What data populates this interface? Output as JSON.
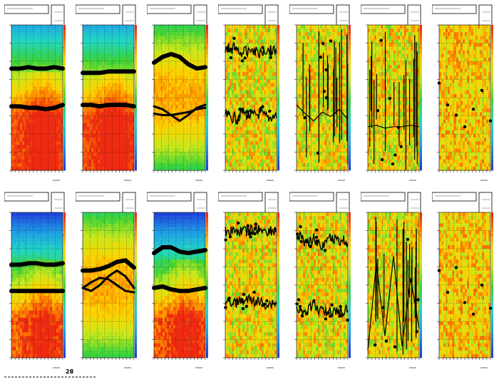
{
  "chart_data": [
    {
      "type": "heatmap",
      "panel": 1,
      "palette": "rainbow",
      "background": "orange-red",
      "tracks": [
        {
          "y": [
            0.3,
            0.3,
            0.29,
            0.3,
            0.3,
            0.29,
            0.3
          ],
          "style": "thick"
        },
        {
          "y": [
            0.56,
            0.56,
            0.57,
            0.57,
            0.58,
            0.57,
            0.55
          ],
          "style": "thick"
        }
      ]
    },
    {
      "type": "heatmap",
      "panel": 2,
      "palette": "rainbow",
      "background": "orange-red",
      "tracks": [
        {
          "y": [
            0.33,
            0.33,
            0.33,
            0.32,
            0.32,
            0.32,
            0.32
          ],
          "style": "thick"
        },
        {
          "y": [
            0.55,
            0.55,
            0.56,
            0.55,
            0.55,
            0.55,
            0.56
          ],
          "style": "thick"
        }
      ]
    },
    {
      "type": "heatmap",
      "panel": 3,
      "palette": "rainbow",
      "background": "green-orange",
      "tracks": [
        {
          "y": [
            0.26,
            0.22,
            0.2,
            0.22,
            0.27,
            0.3,
            0.29
          ],
          "style": "thick"
        },
        {
          "y": [
            0.56,
            0.58,
            0.62,
            0.66,
            0.62,
            0.57,
            0.55
          ],
          "style": "thin"
        },
        {
          "y": [
            0.61,
            0.62,
            0.62,
            0.61,
            0.6,
            0.58,
            0.57
          ],
          "style": "thin"
        }
      ]
    },
    {
      "type": "heatmap",
      "panel": 4,
      "palette": "rainbow",
      "background": "noisy",
      "tracks": [
        {
          "y": [
            0.18,
            0.15,
            0.2,
            0.16,
            0.19,
            0.17,
            0.18
          ],
          "style": "noisy"
        },
        {
          "y": [
            0.62,
            0.64,
            0.6,
            0.63,
            0.61,
            0.64,
            0.62
          ],
          "style": "noisy"
        }
      ]
    },
    {
      "type": "heatmap",
      "panel": 5,
      "palette": "rainbow",
      "background": "noisy",
      "tracks": [
        {
          "y": [
            0.55,
            0.61,
            0.66,
            0.6,
            0.63,
            0.58,
            0.65
          ],
          "style": "spiky"
        }
      ]
    },
    {
      "type": "heatmap",
      "panel": 6,
      "palette": "rainbow",
      "background": "noisy",
      "tracks": [
        {
          "y": [
            0.7,
            0.69,
            0.71,
            0.7,
            0.7,
            0.69,
            0.7
          ],
          "style": "spiky"
        }
      ]
    },
    {
      "type": "heatmap",
      "panel": 7,
      "palette": "rainbow",
      "background": "sparse",
      "tracks": [
        {
          "y": [
            0.4,
            0.55,
            0.62,
            0.7,
            0.58,
            0.45,
            0.66
          ],
          "style": "dots"
        }
      ]
    },
    {
      "type": "heatmap",
      "panel": 8,
      "palette": "rainbow",
      "background": "blue-top",
      "tracks": [
        {
          "y": [
            0.36,
            0.36,
            0.35,
            0.35,
            0.36,
            0.36,
            0.35
          ],
          "style": "thick"
        },
        {
          "y": [
            0.54,
            0.54,
            0.54,
            0.54,
            0.54,
            0.54,
            0.54
          ],
          "style": "thick"
        }
      ]
    },
    {
      "type": "heatmap",
      "panel": 9,
      "palette": "rainbow",
      "background": "green-orange",
      "tracks": [
        {
          "y": [
            0.4,
            0.4,
            0.39,
            0.37,
            0.34,
            0.33,
            0.38
          ],
          "style": "thick"
        },
        {
          "y": [
            0.52,
            0.48,
            0.45,
            0.46,
            0.5,
            0.54,
            0.55
          ],
          "style": "thin"
        },
        {
          "y": [
            0.52,
            0.54,
            0.5,
            0.44,
            0.4,
            0.44,
            0.52
          ],
          "style": "thin"
        }
      ]
    },
    {
      "type": "heatmap",
      "panel": 10,
      "palette": "rainbow",
      "background": "blue-top",
      "tracks": [
        {
          "y": [
            0.28,
            0.24,
            0.24,
            0.27,
            0.28,
            0.27,
            0.26
          ],
          "style": "thick"
        },
        {
          "y": [
            0.52,
            0.51,
            0.53,
            0.54,
            0.54,
            0.53,
            0.52
          ],
          "style": "thick"
        }
      ]
    },
    {
      "type": "heatmap",
      "panel": 11,
      "palette": "rainbow",
      "background": "noisy",
      "tracks": [
        {
          "y": [
            0.13,
            0.13,
            0.13,
            0.12,
            0.12,
            0.13,
            0.13
          ],
          "style": "noisy"
        },
        {
          "y": [
            0.6,
            0.62,
            0.61,
            0.6,
            0.62,
            0.63,
            0.62
          ],
          "style": "noisy"
        }
      ]
    },
    {
      "type": "heatmap",
      "panel": 12,
      "palette": "rainbow",
      "background": "noisy",
      "tracks": [
        {
          "y": [
            0.15,
            0.2,
            0.18,
            0.22,
            0.17,
            0.19,
            0.21
          ],
          "style": "noisy"
        },
        {
          "y": [
            0.66,
            0.68,
            0.64,
            0.69,
            0.67,
            0.7,
            0.66
          ],
          "style": "noisy"
        }
      ]
    },
    {
      "type": "heatmap",
      "panel": 13,
      "palette": "rainbow",
      "background": "noisy",
      "tracks": [
        {
          "y": [
            0.95,
            0.35,
            0.85,
            0.3,
            0.92,
            0.45,
            0.8
          ],
          "style": "spiky"
        }
      ]
    },
    {
      "type": "heatmap",
      "panel": 14,
      "palette": "rainbow",
      "background": "sparse",
      "tracks": [
        {
          "y": [
            0.4,
            0.55,
            0.38,
            0.62,
            0.7,
            0.5,
            0.66
          ],
          "style": "dots"
        }
      ]
    }
  ],
  "footer": {
    "label": "28"
  }
}
